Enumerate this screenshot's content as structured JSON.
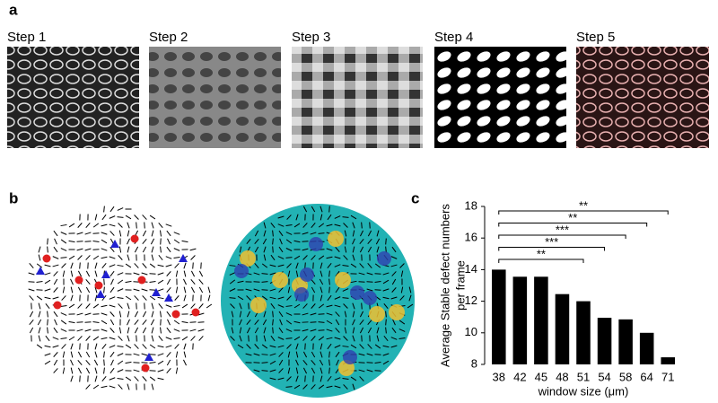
{
  "panel_labels": [
    "a",
    "b",
    "c"
  ],
  "steps": [
    "Step 1",
    "Step 2",
    "Step 3",
    "Step 4",
    "Step 5"
  ],
  "chart_data": {
    "type": "bar",
    "ylabel": [
      "Average Stable defect numbers",
      "per frame"
    ],
    "xlabel": "window size (μm)",
    "categories": [
      "38",
      "42",
      "45",
      "48",
      "51",
      "54",
      "58",
      "64",
      "71"
    ],
    "values": [
      14.0,
      13.55,
      13.55,
      12.45,
      12.0,
      10.95,
      10.85,
      10.0,
      8.45
    ],
    "color": "#000000",
    "ylim": [
      8,
      18
    ],
    "yticks": [
      8,
      10,
      12,
      14,
      16,
      18
    ],
    "annotations": [
      {
        "from": "38",
        "to": "71",
        "text": "**"
      },
      {
        "from": "38",
        "to": "64",
        "text": "**"
      },
      {
        "from": "38",
        "to": "58",
        "text": "***"
      },
      {
        "from": "38",
        "to": "54",
        "text": "***"
      },
      {
        "from": "38",
        "to": "51",
        "text": "**"
      }
    ]
  }
}
